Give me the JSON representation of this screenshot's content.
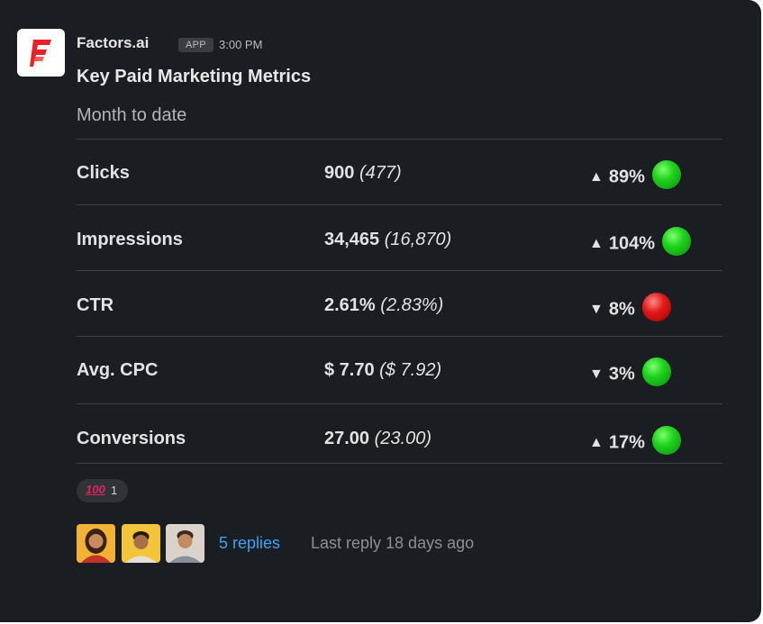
{
  "message": {
    "sender": "Factors.ai",
    "badge": "APP",
    "time": "3:00 PM",
    "title": "Key Paid Marketing Metrics",
    "subtitle": "Month to date"
  },
  "metrics": [
    {
      "name": "Clicks",
      "value": "900",
      "previous": "(477)",
      "direction": "up",
      "change": "89%",
      "status": "green"
    },
    {
      "name": "Impressions",
      "value": "34,465",
      "previous": "(16,870)",
      "direction": "up",
      "change": "104%",
      "status": "green"
    },
    {
      "name": "CTR",
      "value": "2.61%",
      "previous": "(2.83%)",
      "direction": "down",
      "change": "8%",
      "status": "red"
    },
    {
      "name": "Avg. CPC",
      "value": "$ 7.70",
      "previous": "($ 7.92)",
      "direction": "down",
      "change": "3%",
      "status": "green"
    },
    {
      "name": "Conversions",
      "value": "27.00",
      "previous": "(23.00)",
      "direction": "up",
      "change": "17%",
      "status": "green"
    }
  ],
  "arrows": {
    "up": "▲",
    "down": "▼"
  },
  "reaction": {
    "emoji": "100",
    "count": "1"
  },
  "thread": {
    "replies": "5 replies",
    "last_reply": "Last reply 18 days ago"
  },
  "colors": {
    "background": "#1a1d21",
    "link": "#3fa2f7",
    "brand": "#e8202a",
    "status_green": "#1ed21e",
    "status_red": "#e21a1a"
  }
}
